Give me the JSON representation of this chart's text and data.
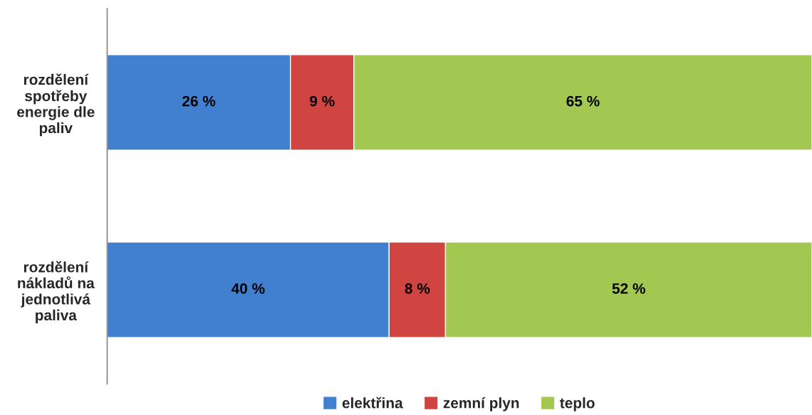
{
  "chart_data": {
    "type": "bar",
    "orientation": "horizontal",
    "stacked": true,
    "categories": [
      "rozdělení\nspotřeby\nenergie dle\npaliv",
      "rozdělení\nnákladů na\njednotlivá\npaliva"
    ],
    "series": [
      {
        "name": "elektřina",
        "color": "#4180cf",
        "values": [
          26,
          40
        ],
        "value_labels": [
          "26 %",
          "40 %"
        ]
      },
      {
        "name": "zemní plyn",
        "color": "#d04441",
        "values": [
          9,
          8
        ],
        "value_labels": [
          "9 %",
          "8 %"
        ]
      },
      {
        "name": "teplo",
        "color": "#a2c851",
        "values": [
          65,
          52
        ],
        "value_labels": [
          "65 %",
          "52 %"
        ]
      }
    ],
    "xlim": [
      0,
      100
    ],
    "tick_labels": "y",
    "legend": "bottom"
  }
}
